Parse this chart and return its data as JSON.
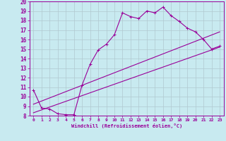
{
  "title": "",
  "xlabel": "Windchill (Refroidissement éolien,°C)",
  "bg_color": "#c8eaf0",
  "line_color": "#990099",
  "xlim": [
    -0.5,
    23.5
  ],
  "ylim": [
    8,
    20
  ],
  "xticks": [
    0,
    1,
    2,
    3,
    4,
    5,
    6,
    7,
    8,
    9,
    10,
    11,
    12,
    13,
    14,
    15,
    16,
    17,
    18,
    19,
    20,
    21,
    22,
    23
  ],
  "yticks": [
    8,
    9,
    10,
    11,
    12,
    13,
    14,
    15,
    16,
    17,
    18,
    19,
    20
  ],
  "series1_x": [
    0,
    1,
    2,
    3,
    4,
    5,
    6,
    7,
    8,
    9,
    10,
    11,
    12,
    13,
    14,
    15,
    16,
    17,
    18,
    19,
    20,
    21,
    22,
    23
  ],
  "series1_y": [
    10.7,
    8.8,
    8.7,
    8.2,
    8.1,
    8.1,
    11.2,
    13.4,
    14.9,
    15.5,
    16.5,
    18.8,
    18.4,
    18.2,
    19.0,
    18.8,
    19.4,
    18.5,
    17.9,
    17.2,
    16.8,
    16.0,
    15.0,
    15.3
  ],
  "series2_x": [
    0,
    23
  ],
  "series2_y": [
    8.3,
    15.2
  ],
  "series3_x": [
    0,
    23
  ],
  "series3_y": [
    9.2,
    16.8
  ],
  "grid_color": "#b0c8d0",
  "marker": "+"
}
